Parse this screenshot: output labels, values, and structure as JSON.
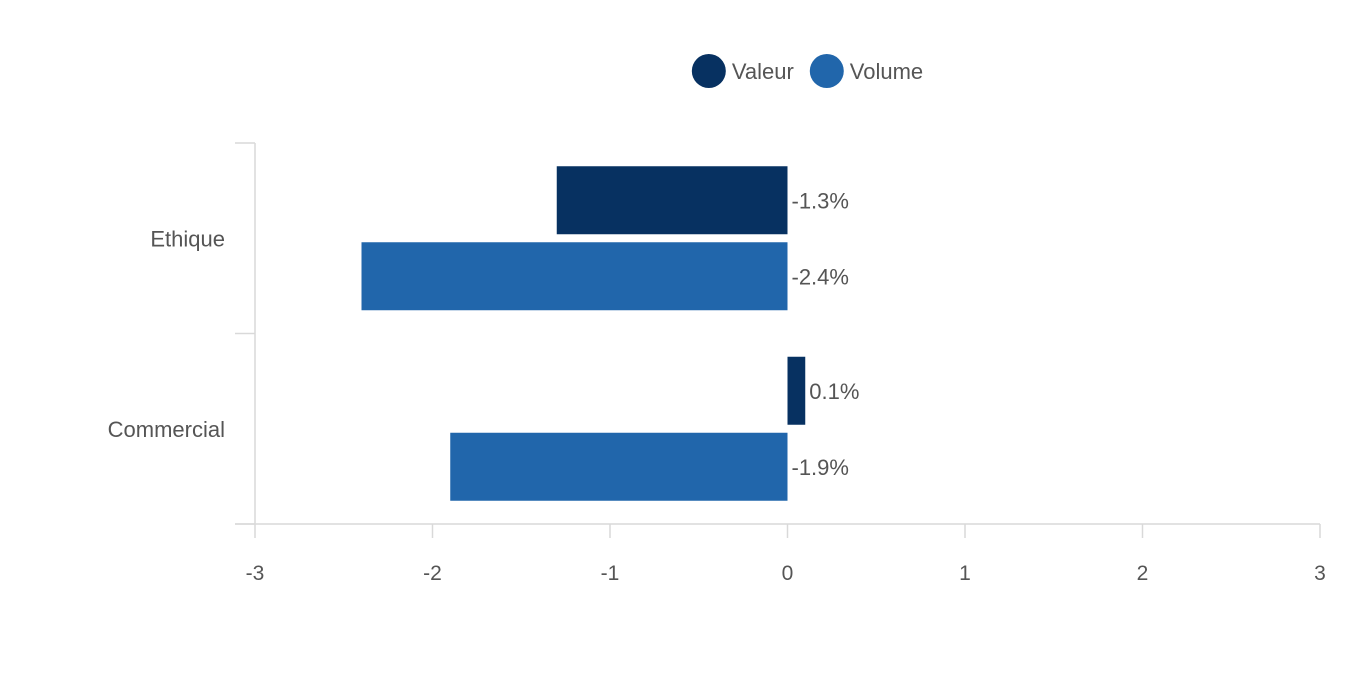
{
  "chart_data": {
    "type": "bar",
    "orientation": "horizontal",
    "categories": [
      "Ethique",
      "Commercial"
    ],
    "series": [
      {
        "name": "Valeur",
        "color": "#073161",
        "values": [
          -1.3,
          0.1
        ],
        "labels": [
          "-1.3%",
          "0.1%"
        ]
      },
      {
        "name": "Volume",
        "color": "#2166ab",
        "values": [
          -2.4,
          -1.9
        ],
        "labels": [
          "-2.4%",
          "-1.9%"
        ]
      }
    ],
    "xlim": [
      -3,
      3
    ],
    "x_ticks": [
      -3,
      -2,
      -1,
      0,
      1,
      2,
      3
    ],
    "x_tick_labels": [
      "-3",
      "-2",
      "-1",
      "0",
      "1",
      "2",
      "3"
    ],
    "legend_position": "top-center",
    "grid": false,
    "title": "",
    "xlabel": "",
    "ylabel": ""
  }
}
